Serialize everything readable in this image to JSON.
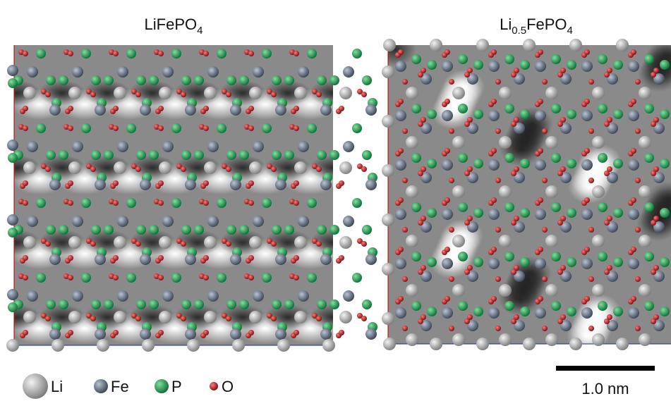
{
  "panels": [
    {
      "title_parts": [
        "LiFePO",
        "4"
      ]
    },
    {
      "title_parts": [
        "Li",
        "0.5",
        "FePO",
        "4"
      ]
    }
  ],
  "legend": [
    "Li",
    "Fe",
    "P",
    "O"
  ],
  "scale_bar": "1.0 nm"
}
